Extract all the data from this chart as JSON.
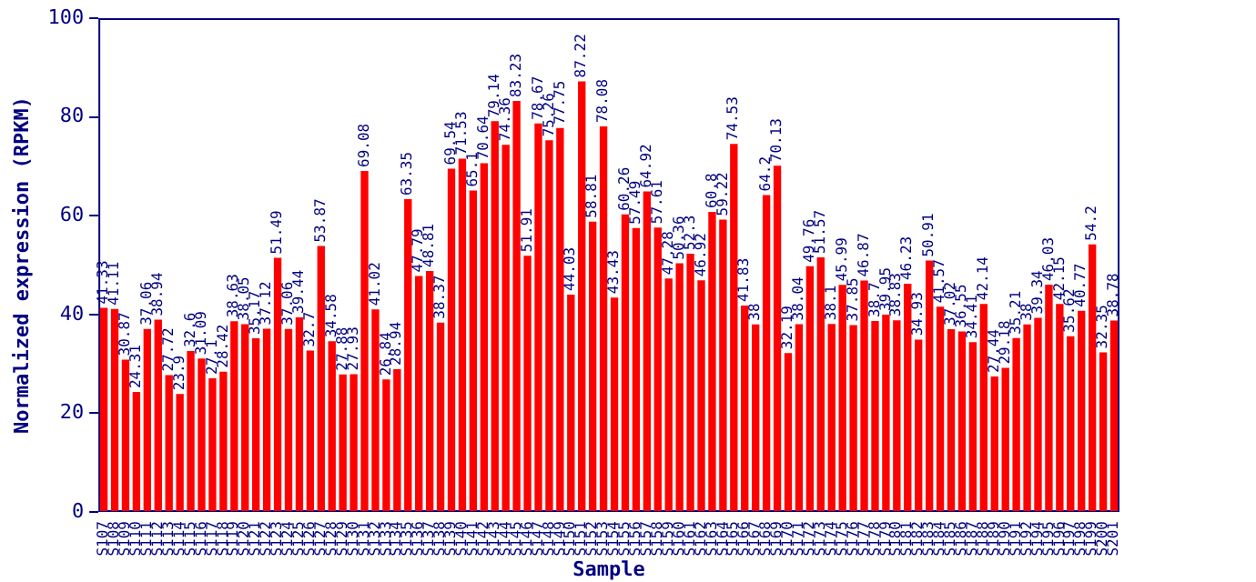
{
  "chart_data": {
    "type": "bar",
    "xlabel": "Sample",
    "ylabel": "Normalized expression (RPKM)",
    "categories": [
      "S107",
      "S108",
      "S109",
      "S110",
      "S111",
      "S112",
      "S113",
      "S114",
      "S115",
      "S116",
      "S117",
      "S118",
      "S119",
      "S120",
      "S121",
      "S122",
      "S123",
      "S124",
      "S125",
      "S126",
      "S127",
      "S128",
      "S129",
      "S130",
      "S131",
      "S132",
      "S133",
      "S134",
      "S135",
      "S136",
      "S137",
      "S138",
      "S139",
      "S140",
      "S141",
      "S142",
      "S143",
      "S144",
      "S145",
      "S146",
      "S147",
      "S148",
      "S149",
      "S150",
      "S151",
      "S152",
      "S153",
      "S154",
      "S155",
      "S156",
      "S157",
      "S158",
      "S159",
      "S160",
      "S161",
      "S162",
      "S163",
      "S164",
      "S165",
      "S166",
      "S167",
      "S168",
      "S169",
      "S170",
      "S171",
      "S172",
      "S173",
      "S174",
      "S175",
      "S176",
      "S177",
      "S178",
      "S179",
      "S180",
      "S181",
      "S182",
      "S183",
      "S184",
      "S185",
      "S186",
      "S187",
      "S188",
      "S189",
      "S190",
      "S191",
      "S192",
      "S194",
      "S195",
      "S196",
      "S197",
      "S198",
      "S199",
      "S200",
      "S201"
    ],
    "values": [
      41.33,
      41.11,
      30.87,
      24.31,
      37.06,
      38.94,
      27.72,
      23.9,
      32.6,
      31.09,
      27.1,
      28.42,
      38.63,
      38.05,
      35.17,
      37.12,
      51.49,
      37.06,
      39.44,
      32.7,
      53.87,
      34.58,
      27.88,
      27.93,
      69.08,
      41.02,
      26.84,
      28.94,
      63.35,
      47.79,
      48.81,
      38.37,
      69.54,
      71.53,
      65.1,
      70.64,
      79.14,
      74.36,
      83.23,
      51.91,
      78.67,
      75.26,
      77.75,
      44.03,
      87.22,
      58.81,
      78.08,
      43.43,
      60.26,
      57.49,
      64.92,
      57.61,
      47.28,
      50.36,
      52.3,
      46.92,
      60.8,
      59.22,
      74.53,
      41.83,
      38,
      64.2,
      70.13,
      32.19,
      38.04,
      49.76,
      51.57,
      38.1,
      45.99,
      37.85,
      46.87,
      38.7,
      39.95,
      38.83,
      46.23,
      34.93,
      50.91,
      41.57,
      37.02,
      36.55,
      34.41,
      42.14,
      27.44,
      29.18,
      35.21,
      38,
      39.34,
      46.03,
      42.15,
      35.62,
      40.77,
      54.2,
      32.35,
      38.78
    ],
    "color": "#ff0000",
    "data_labels": true,
    "ylim": [
      0,
      100
    ],
    "yticks": [
      0,
      20,
      40,
      60,
      80,
      100
    ],
    "grid": false,
    "legend": false
  }
}
